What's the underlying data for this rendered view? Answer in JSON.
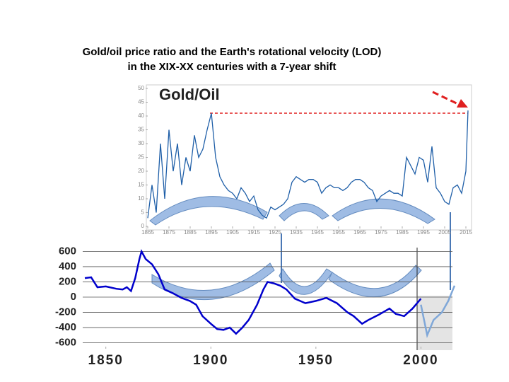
{
  "title_lines": [
    "Gold/oil price ratio and the Earth's rotational velocity (LOD)",
    "in the XIX-XX centuries with a 7-year shift"
  ],
  "chart_data": [
    {
      "type": "line",
      "title": "Gold/Oil",
      "color": "#1f5fa8",
      "x": [
        1865,
        1867,
        1869,
        1871,
        1873,
        1875,
        1877,
        1879,
        1881,
        1883,
        1885,
        1887,
        1889,
        1891,
        1893,
        1895,
        1897,
        1899,
        1901,
        1903,
        1905,
        1907,
        1909,
        1911,
        1913,
        1915,
        1917,
        1919,
        1921,
        1923,
        1925,
        1927,
        1929,
        1931,
        1933,
        1935,
        1937,
        1939,
        1941,
        1943,
        1945,
        1947,
        1949,
        1951,
        1953,
        1955,
        1957,
        1959,
        1961,
        1963,
        1965,
        1967,
        1969,
        1971,
        1973,
        1975,
        1977,
        1979,
        1981,
        1983,
        1985,
        1987,
        1989,
        1991,
        1993,
        1995,
        1997,
        1999,
        2001,
        2003,
        2005,
        2007,
        2009,
        2011,
        2013,
        2015,
        2016
      ],
      "values": [
        3,
        15,
        5,
        30,
        10,
        35,
        20,
        30,
        15,
        25,
        20,
        33,
        25,
        28,
        35,
        41,
        25,
        18,
        15,
        13,
        12,
        10,
        14,
        12,
        9,
        11,
        6,
        4,
        3,
        7,
        6,
        7,
        8,
        10,
        16,
        18,
        17,
        16,
        17,
        17,
        16,
        12,
        14,
        15,
        14,
        14,
        13,
        14,
        16,
        17,
        17,
        16,
        14,
        13,
        9,
        11,
        12,
        13,
        12,
        12,
        11,
        25,
        22,
        19,
        25,
        24,
        16,
        29,
        14,
        12,
        9,
        8,
        14,
        15,
        12,
        20,
        42
      ],
      "xlim": [
        1865,
        2016
      ],
      "xticks": [
        1865,
        1875,
        1885,
        1895,
        1905,
        1915,
        1925,
        1935,
        1945,
        1955,
        1965,
        1975,
        1985,
        1995,
        2005,
        2015
      ],
      "ylim": [
        0,
        50
      ],
      "yticks": [
        0,
        5,
        10,
        15,
        20,
        25,
        30,
        35,
        40,
        45,
        50
      ]
    },
    {
      "type": "line",
      "series": [
        {
          "color": "#0000cc",
          "x": [
            1840,
            1843,
            1846,
            1850,
            1855,
            1858,
            1860,
            1862,
            1864,
            1866,
            1867,
            1869,
            1872,
            1875,
            1878,
            1882,
            1886,
            1890,
            1893,
            1896,
            1900,
            1903,
            1906,
            1909,
            1912,
            1915,
            1918,
            1922,
            1925,
            1927,
            1930,
            1933,
            1936,
            1940,
            1945,
            1950,
            1955,
            1960,
            1965,
            1968,
            1972,
            1975,
            1980,
            1985,
            1988,
            1992,
            1996,
            2000
          ],
          "values": [
            250,
            260,
            130,
            140,
            110,
            100,
            130,
            80,
            250,
            500,
            600,
            500,
            430,
            300,
            100,
            50,
            -10,
            -50,
            -100,
            -250,
            -350,
            -420,
            -430,
            -400,
            -480,
            -400,
            -300,
            -100,
            100,
            200,
            180,
            150,
            100,
            -20,
            -80,
            -50,
            -10,
            -80,
            -200,
            -250,
            -350,
            -300,
            -230,
            -150,
            -220,
            -250,
            -150,
            -20
          ]
        },
        {
          "color": "#7fa7d8",
          "x": [
            2000,
            2003,
            2006,
            2010,
            2013,
            2016
          ],
          "values": [
            -100,
            -500,
            -300,
            -200,
            -50,
            150
          ]
        }
      ],
      "xlim": [
        1839,
        2015
      ],
      "xticks": [
        1850,
        1900,
        1950,
        2000
      ],
      "ylim": [
        -650,
        650
      ],
      "yticks": [
        600,
        400,
        200,
        0,
        -200,
        -400,
        -600
      ]
    }
  ]
}
